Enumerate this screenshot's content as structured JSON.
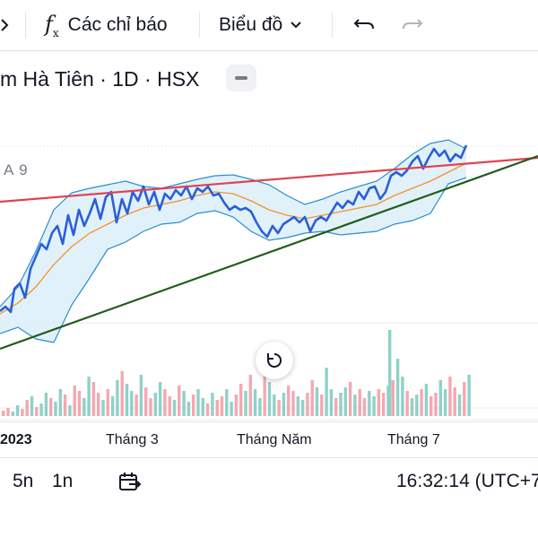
{
  "toolbar": {
    "indicators_label": "Các chỉ báo",
    "chart_type_label": "Biểu đồ"
  },
  "symbol": {
    "title": "m Hà Tiên · 1D · HSX",
    "indicator_label": "A 9"
  },
  "xaxis": {
    "labels": [
      "2023",
      "Tháng 3",
      "Tháng Năm",
      "Tháng 7"
    ]
  },
  "bottom": {
    "range_5n": "5n",
    "range_1n": "1n",
    "clock": "16:32:14 (UTC+7"
  },
  "colors": {
    "price_line": "#2b5fd8",
    "ma_line": "#f5922a",
    "band_line": "#2a8fce",
    "band_fill": "#d9eef9",
    "resistance": "#e0424f",
    "support": "#1f5c1a",
    "volume_up": "#8fd1c8",
    "volume_down": "#f4a8b0"
  }
}
